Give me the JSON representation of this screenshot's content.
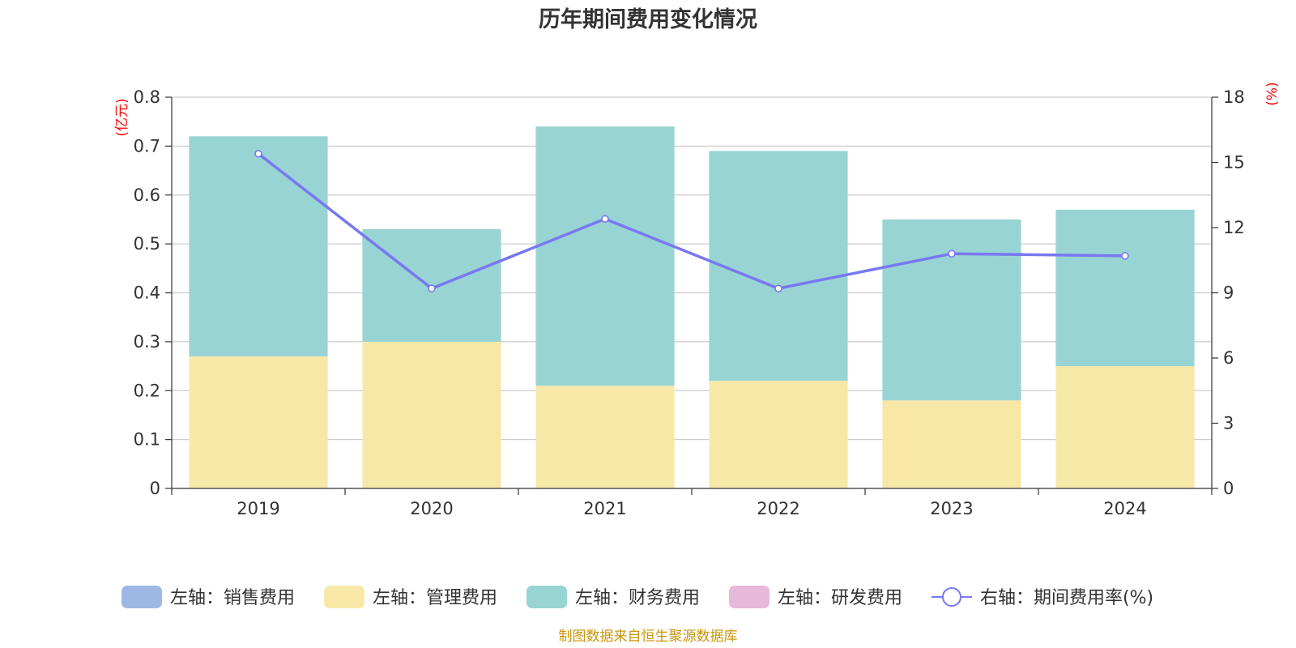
{
  "chart_data": {
    "type": "bar",
    "title": "历年期间费用变化情况",
    "categories": [
      "2019",
      "2020",
      "2021",
      "2022",
      "2023",
      "2024"
    ],
    "y_left": {
      "unit": "(亿元)",
      "ylim": [
        0,
        0.8
      ],
      "ticks": [
        "0",
        "0.1",
        "0.2",
        "0.3",
        "0.4",
        "0.5",
        "0.6",
        "0.7",
        "0.8"
      ]
    },
    "y_right": {
      "unit": "(%)",
      "ylim": [
        0,
        18
      ],
      "ticks": [
        "0",
        "3",
        "6",
        "9",
        "12",
        "15",
        "18"
      ]
    },
    "stacked": true,
    "series": [
      {
        "name": "左轴：销售费用",
        "type": "bar",
        "axis": "left",
        "color": "#9db8e4",
        "values": [
          0,
          0,
          0,
          0,
          0,
          0
        ]
      },
      {
        "name": "左轴：管理费用",
        "type": "bar",
        "axis": "left",
        "color": "#f8e8a8",
        "values": [
          0.27,
          0.3,
          0.21,
          0.22,
          0.18,
          0.25
        ]
      },
      {
        "name": "左轴：财务费用",
        "type": "bar",
        "axis": "left",
        "color": "#98d4d4",
        "values": [
          0.45,
          0.23,
          0.53,
          0.47,
          0.37,
          0.32
        ]
      },
      {
        "name": "左轴：研发费用",
        "type": "bar",
        "axis": "left",
        "color": "#e8b8da",
        "values": [
          0,
          0,
          0,
          0,
          0,
          0
        ]
      },
      {
        "name": "右轴：期间费用率(%)",
        "type": "line",
        "axis": "right",
        "color": "#7878f0",
        "values": [
          15.4,
          9.2,
          12.4,
          9.2,
          10.8,
          10.7
        ]
      }
    ],
    "grid": true,
    "legend": "bottom"
  },
  "source": "制图数据来自恒生聚源数据库"
}
